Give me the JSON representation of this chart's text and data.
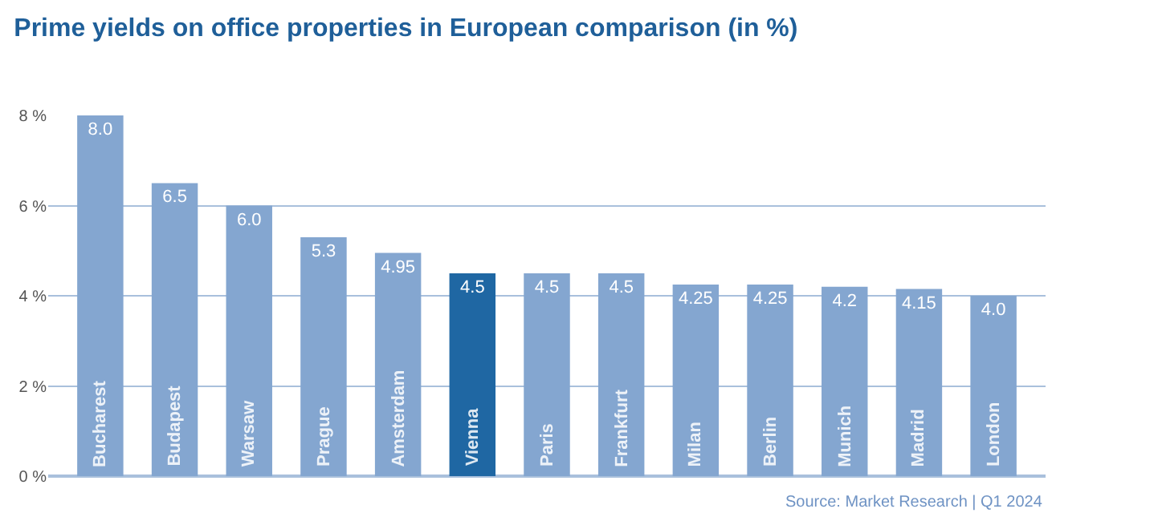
{
  "chart_data": {
    "type": "bar",
    "title": "Prime yields on office properties in European comparison (in %)",
    "categories": [
      "Bucharest",
      "Budapest",
      "Warsaw",
      "Prague",
      "Amsterdam",
      "Vienna",
      "Paris",
      "Frankfurt",
      "Milan",
      "Berlin",
      "Munich",
      "Madrid",
      "London"
    ],
    "values": [
      8.0,
      6.5,
      6.0,
      5.3,
      4.95,
      4.5,
      4.5,
      4.5,
      4.25,
      4.25,
      4.2,
      4.15,
      4.0
    ],
    "value_labels": [
      "8.0",
      "6.5",
      "6.0",
      "5.3",
      "4.95",
      "4.5",
      "4.5",
      "4.5",
      "4.25",
      "4.25",
      "4.2",
      "4.15",
      "4.0"
    ],
    "colors": [
      "#84a6d0",
      "#84a6d0",
      "#84a6d0",
      "#84a6d0",
      "#84a6d0",
      "#1f67a3",
      "#84a6d0",
      "#84a6d0",
      "#84a6d0",
      "#84a6d0",
      "#84a6d0",
      "#84a6d0",
      "#84a6d0"
    ],
    "ylim": [
      0,
      8
    ],
    "yticks": [
      {
        "value": 0,
        "label": "0 %"
      },
      {
        "value": 2,
        "label": "2 %"
      },
      {
        "value": 4,
        "label": "4 %"
      },
      {
        "value": 6,
        "label": "6 %"
      },
      {
        "value": 8,
        "label": "8 %"
      }
    ],
    "grid": "y",
    "annotations": [
      "Source: Market Research | Q1 2024"
    ]
  }
}
